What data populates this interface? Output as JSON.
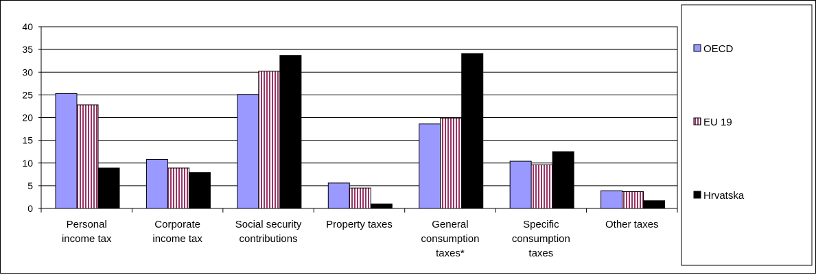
{
  "chart_data": {
    "type": "bar",
    "categories": [
      [
        "Personal",
        "income tax"
      ],
      [
        "Corporate",
        "income tax"
      ],
      [
        "Social security",
        "contributions"
      ],
      [
        "Property taxes"
      ],
      [
        "General",
        "consumption",
        "taxes*"
      ],
      [
        "Specific",
        "consumption",
        "taxes"
      ],
      [
        "Other taxes"
      ]
    ],
    "series": [
      {
        "name": "OECD",
        "values": [
          25.3,
          10.8,
          25.1,
          5.6,
          18.6,
          10.4,
          3.9
        ],
        "color": "#9999ff",
        "pattern": "solid"
      },
      {
        "name": "EU 19",
        "values": [
          22.8,
          8.9,
          30.2,
          4.5,
          19.9,
          9.6,
          3.7
        ],
        "color": "#993366",
        "pattern": "vertical-stripes"
      },
      {
        "name": "Hrvatska",
        "values": [
          8.9,
          7.9,
          33.7,
          1.0,
          34.1,
          12.5,
          1.7
        ],
        "color": "#000000",
        "pattern": "solid"
      }
    ],
    "ylim": [
      0,
      40
    ],
    "yticks": [
      0,
      5,
      10,
      15,
      20,
      25,
      30,
      35,
      40
    ],
    "grid": true,
    "legend": "right"
  }
}
